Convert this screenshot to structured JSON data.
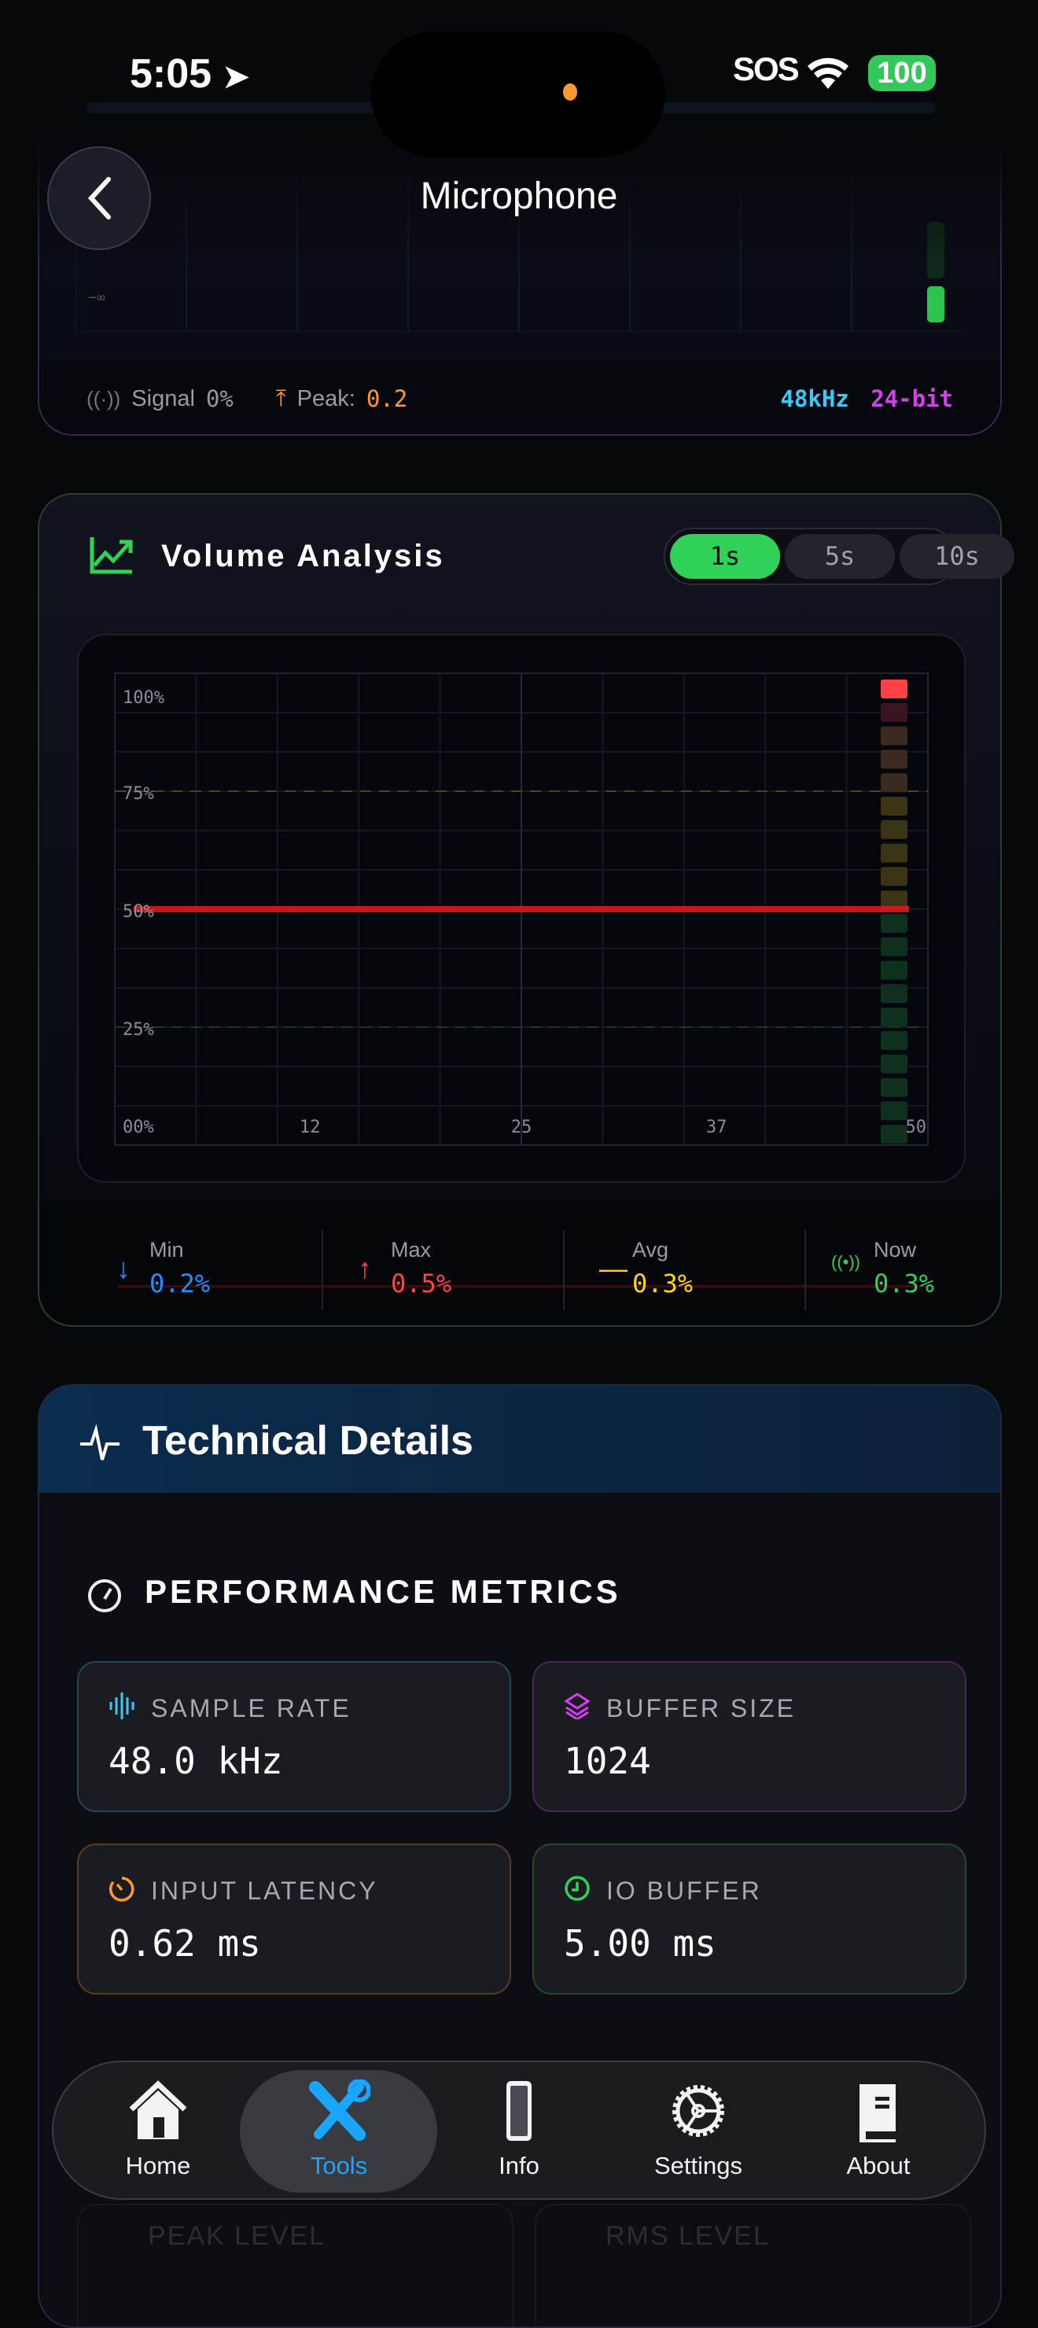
{
  "status_bar": {
    "time": "5:05",
    "carrier": "SOS",
    "battery": "100",
    "battery_color": "#34c759"
  },
  "header": {
    "title": "Microphone",
    "back_icon": "chevron-left-icon"
  },
  "level_card": {
    "min_label": "−∞",
    "signal_label": "Signal",
    "signal_value": "0%",
    "peak_label": "Peak:",
    "peak_value": "0.2",
    "sample_rate": "48kHz",
    "bit_depth": "24-bit",
    "colors": {
      "sample_rate": "#3cc8f5",
      "bit_depth": "#d43ff0",
      "peak": "#ff9a2e"
    }
  },
  "volume_analysis": {
    "title": "Volume Analysis",
    "segments": [
      {
        "label": "1s",
        "selected": true
      },
      {
        "label": "5s",
        "selected": false
      },
      {
        "label": "10s",
        "selected": false
      }
    ],
    "stats": [
      {
        "label": "Min",
        "value": "0.2%",
        "color": "#1e90ff",
        "icon": "arrow-down-icon"
      },
      {
        "label": "Max",
        "value": "0.5%",
        "color": "#ff4245",
        "icon": "arrow-up-icon"
      },
      {
        "label": "Avg",
        "value": "0.3%",
        "color": "#ffd60a",
        "icon": "minus-icon"
      },
      {
        "label": "Now",
        "value": "0.3%",
        "color": "#30d158",
        "icon": "broadcast-icon"
      }
    ]
  },
  "chart_data": {
    "type": "line",
    "y_tick_labels": [
      "100%",
      "75%",
      "50%",
      "25%",
      "00%"
    ],
    "x_tick_labels": [
      "12",
      "25",
      "37",
      "50"
    ],
    "xlim": [
      0,
      50
    ],
    "ylim": [
      0,
      100
    ],
    "reference_lines": [
      75,
      25
    ],
    "grid": true,
    "series": [
      {
        "x": [
          0,
          50
        ],
        "values": [
          50,
          50
        ],
        "color": "#e0161d"
      }
    ],
    "level_meter_segments": 20,
    "level_meter_active": 1
  },
  "technical_details": {
    "title": "Technical Details",
    "section": "PERFORMANCE METRICS",
    "metrics": [
      {
        "label": "SAMPLE RATE",
        "value": "48.0 kHz",
        "color": "#3cc8f5",
        "icon": "waveform-icon"
      },
      {
        "label": "BUFFER SIZE",
        "value": "1024",
        "color": "#d43ff0",
        "icon": "layers-icon"
      },
      {
        "label": "INPUT LATENCY",
        "value": "0.62 ms",
        "color": "#ff9a2e",
        "icon": "timer-icon"
      },
      {
        "label": "IO BUFFER",
        "value": "5.00 ms",
        "color": "#30d158",
        "icon": "clock-icon"
      }
    ],
    "below": {
      "peak_label": "PEAK LEVEL",
      "rms_label": "RMS LEVEL"
    }
  },
  "tab_bar": {
    "active_color": "#1aa6ff",
    "items": [
      {
        "label": "Home",
        "icon": "house-icon"
      },
      {
        "label": "Tools",
        "icon": "tools-icon",
        "active": true
      },
      {
        "label": "Info",
        "icon": "phone-icon"
      },
      {
        "label": "Settings",
        "icon": "gear-icon"
      },
      {
        "label": "About",
        "icon": "book-icon"
      }
    ]
  }
}
